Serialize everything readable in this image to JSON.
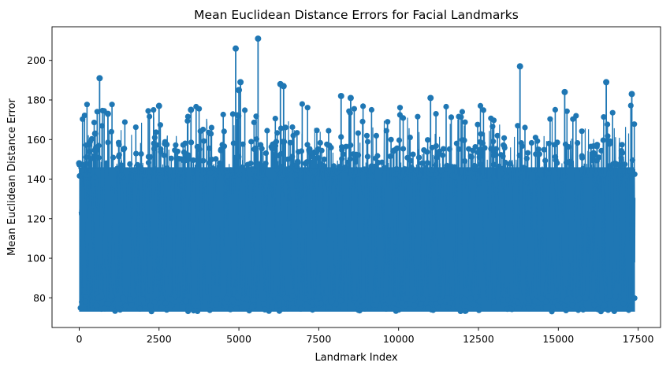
{
  "chart_data": {
    "type": "line",
    "title": "Mean Euclidean Distance Errors for Facial Landmarks",
    "xlabel": "Landmark Index",
    "ylabel": "Mean Euclidean Distance Error",
    "xlim": [
      -850,
      18200
    ],
    "ylim": [
      65,
      217
    ],
    "xticks": [
      0,
      2500,
      5000,
      7500,
      10000,
      12500,
      15000,
      17500
    ],
    "xtick_labels": [
      "0",
      "2500",
      "5000",
      "7500",
      "10000",
      "12500",
      "15000",
      "17500"
    ],
    "yticks": [
      80,
      100,
      120,
      140,
      160,
      180,
      200
    ],
    "ytick_labels": [
      "80",
      "100",
      "120",
      "140",
      "160",
      "180",
      "200"
    ],
    "grid": false,
    "legend": "none",
    "marker": "circle",
    "color": "#1f77b4",
    "n_points": 17400,
    "series": [
      {
        "x": [
          0,
          500,
          640,
          900,
          2500,
          3500,
          4900,
          5000,
          5050,
          5600,
          6300,
          6400,
          8200,
          8500,
          11000,
          13800,
          15200,
          16500,
          17300
        ],
        "values": [
          148,
          163,
          191,
          173,
          177,
          175,
          206,
          185,
          189,
          211,
          188,
          187,
          182,
          181,
          181,
          197,
          184,
          189,
          183
        ]
      }
    ],
    "value_band": [
      73,
      150
    ]
  }
}
